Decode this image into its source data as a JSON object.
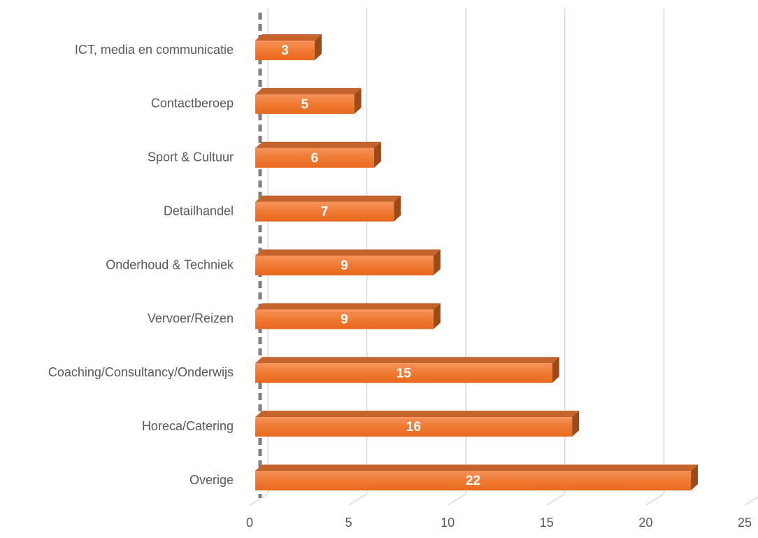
{
  "chart_data": {
    "type": "bar",
    "orientation": "horizontal",
    "categories": [
      "ICT, media en communicatie",
      "Contactberoep",
      "Sport & Cultuur",
      "Detailhandel",
      "Onderhoud & Techniek",
      "Vervoer/Reizen",
      "Coaching/Consultancy/Onderwijs",
      "Horeca/Catering",
      "Overige"
    ],
    "values": [
      3,
      5,
      6,
      7,
      9,
      9,
      15,
      16,
      22
    ],
    "color": "#ed7d31",
    "xlim": [
      0,
      25
    ],
    "xticks": [
      0,
      5,
      10,
      15,
      20,
      25
    ],
    "grid": true
  }
}
